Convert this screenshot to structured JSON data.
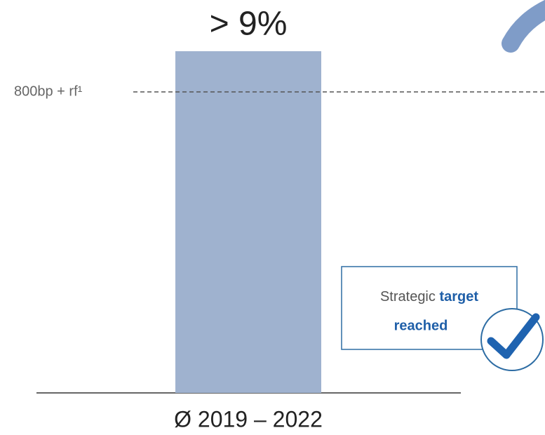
{
  "chart_data": {
    "type": "bar",
    "categories": [
      "Ø 2019 – 2022"
    ],
    "values": [
      9
    ],
    "value_labels": [
      "> 9%"
    ],
    "color": "#9fb2cf",
    "reference_line": {
      "label": "800bp + rf¹"
    },
    "callout": {
      "parts": [
        "Strategic",
        "target",
        "reached"
      ]
    }
  }
}
